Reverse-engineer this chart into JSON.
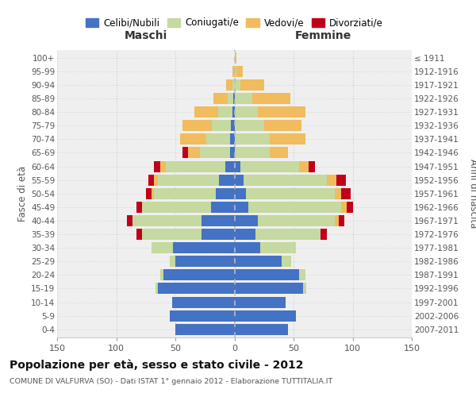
{
  "age_groups": [
    "0-4",
    "5-9",
    "10-14",
    "15-19",
    "20-24",
    "25-29",
    "30-34",
    "35-39",
    "40-44",
    "45-49",
    "50-54",
    "55-59",
    "60-64",
    "65-69",
    "70-74",
    "75-79",
    "80-84",
    "85-89",
    "90-94",
    "95-99",
    "100+"
  ],
  "birth_years": [
    "2007-2011",
    "2002-2006",
    "1997-2001",
    "1992-1996",
    "1987-1991",
    "1982-1986",
    "1977-1981",
    "1972-1976",
    "1967-1971",
    "1962-1966",
    "1957-1961",
    "1952-1956",
    "1947-1951",
    "1942-1946",
    "1937-1941",
    "1932-1936",
    "1927-1931",
    "1922-1926",
    "1917-1921",
    "1912-1916",
    "≤ 1911"
  ],
  "colors": {
    "celibi": "#4472C4",
    "coniugati": "#C5D9A0",
    "vedovi": "#F0BC5E",
    "divorziati": "#C0001A",
    "background": "#EFEFEF"
  },
  "maschi": {
    "celibi": [
      50,
      55,
      53,
      65,
      60,
      50,
      52,
      28,
      28,
      20,
      16,
      13,
      8,
      4,
      4,
      3,
      2,
      1,
      0,
      0,
      0
    ],
    "coniugati": [
      0,
      0,
      0,
      2,
      3,
      5,
      18,
      50,
      58,
      58,
      52,
      52,
      50,
      25,
      20,
      16,
      12,
      5,
      2,
      0,
      0
    ],
    "vedovi": [
      0,
      0,
      0,
      0,
      0,
      0,
      0,
      0,
      0,
      0,
      2,
      3,
      5,
      10,
      22,
      25,
      20,
      12,
      5,
      2,
      0
    ],
    "divorziati": [
      0,
      0,
      0,
      0,
      0,
      0,
      0,
      5,
      5,
      5,
      5,
      5,
      5,
      5,
      0,
      0,
      0,
      0,
      0,
      0,
      0
    ]
  },
  "femmine": {
    "celibi": [
      45,
      52,
      43,
      58,
      55,
      40,
      22,
      18,
      20,
      12,
      10,
      8,
      5,
      0,
      0,
      0,
      0,
      0,
      0,
      0,
      0
    ],
    "coniugati": [
      0,
      0,
      0,
      3,
      5,
      8,
      30,
      55,
      65,
      78,
      75,
      70,
      50,
      30,
      30,
      25,
      20,
      15,
      5,
      2,
      0
    ],
    "vedovi": [
      0,
      0,
      0,
      0,
      0,
      0,
      0,
      0,
      3,
      5,
      5,
      8,
      8,
      15,
      30,
      32,
      40,
      32,
      20,
      5,
      2
    ],
    "divorziati": [
      0,
      0,
      0,
      0,
      0,
      0,
      0,
      5,
      5,
      5,
      8,
      8,
      5,
      0,
      0,
      0,
      0,
      0,
      0,
      0,
      0
    ]
  },
  "xlim": 150,
  "title": "Popolazione per età, sesso e stato civile - 2012",
  "subtitle": "COMUNE DI VALFURVA (SO) - Dati ISTAT 1° gennaio 2012 - Elaborazione TUTTITALIA.IT",
  "ylabel_left": "Fasce di età",
  "ylabel_right": "Anni di nascita",
  "label_maschi": "Maschi",
  "label_femmine": "Femmine",
  "legend_labels": [
    "Celibi/Nubili",
    "Coniugati/e",
    "Vedovi/e",
    "Divorziati/e"
  ]
}
